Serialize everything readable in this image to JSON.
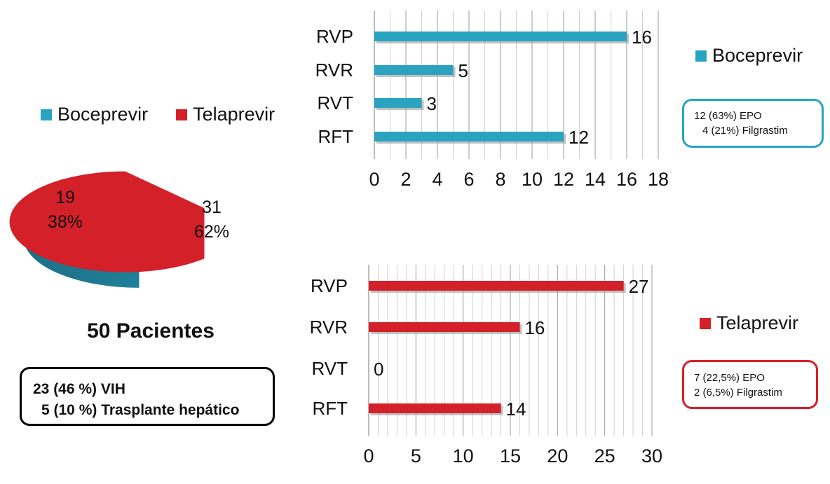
{
  "colors": {
    "boceprevir": "#2aa3c0",
    "telaprevir": "#d42029"
  },
  "pie": {
    "legend": [
      "Boceprevir",
      "Telaprevir"
    ],
    "total_label": "50 Pacientes",
    "notes": [
      "23 (46 %) VIH",
      "5 (10 %) Trasplante hepático"
    ]
  },
  "boceprevir_panel": {
    "legend": "Boceprevir",
    "notes": [
      "12 (63%) EPO",
      "4 (21%) Filgrastim"
    ]
  },
  "telaprevir_panel": {
    "legend": "Telaprevir",
    "notes": [
      "7 (22,5%) EPO",
      "2 (6,5%) Filgrastim"
    ]
  },
  "chart_data": [
    {
      "type": "pie",
      "title": "",
      "categories": [
        "Boceprevir",
        "Telaprevir"
      ],
      "values": [
        19,
        31
      ],
      "labels": [
        [
          "19",
          "38%"
        ],
        [
          "31",
          "62%"
        ]
      ],
      "legend": "top"
    },
    {
      "type": "bar",
      "orientation": "horizontal",
      "title": "",
      "categories": [
        "RVP",
        "RVR",
        "RVT",
        "RFT"
      ],
      "series": [
        {
          "values": [
            16,
            5,
            3,
            12
          ]
        }
      ],
      "xlim": [
        0,
        18
      ],
      "xticks": [
        "0",
        "2",
        "4",
        "6",
        "8",
        "10",
        "12",
        "14",
        "16",
        "18"
      ],
      "grid": true
    },
    {
      "type": "bar",
      "orientation": "horizontal",
      "title": "",
      "categories": [
        "RVP",
        "RVR",
        "RVT",
        "RFT"
      ],
      "series": [
        {
          "values": [
            27,
            16,
            0,
            14
          ]
        }
      ],
      "xlim": [
        0,
        30
      ],
      "xticks": [
        "0",
        "5",
        "10",
        "15",
        "20",
        "25",
        "30"
      ],
      "grid": true
    }
  ]
}
